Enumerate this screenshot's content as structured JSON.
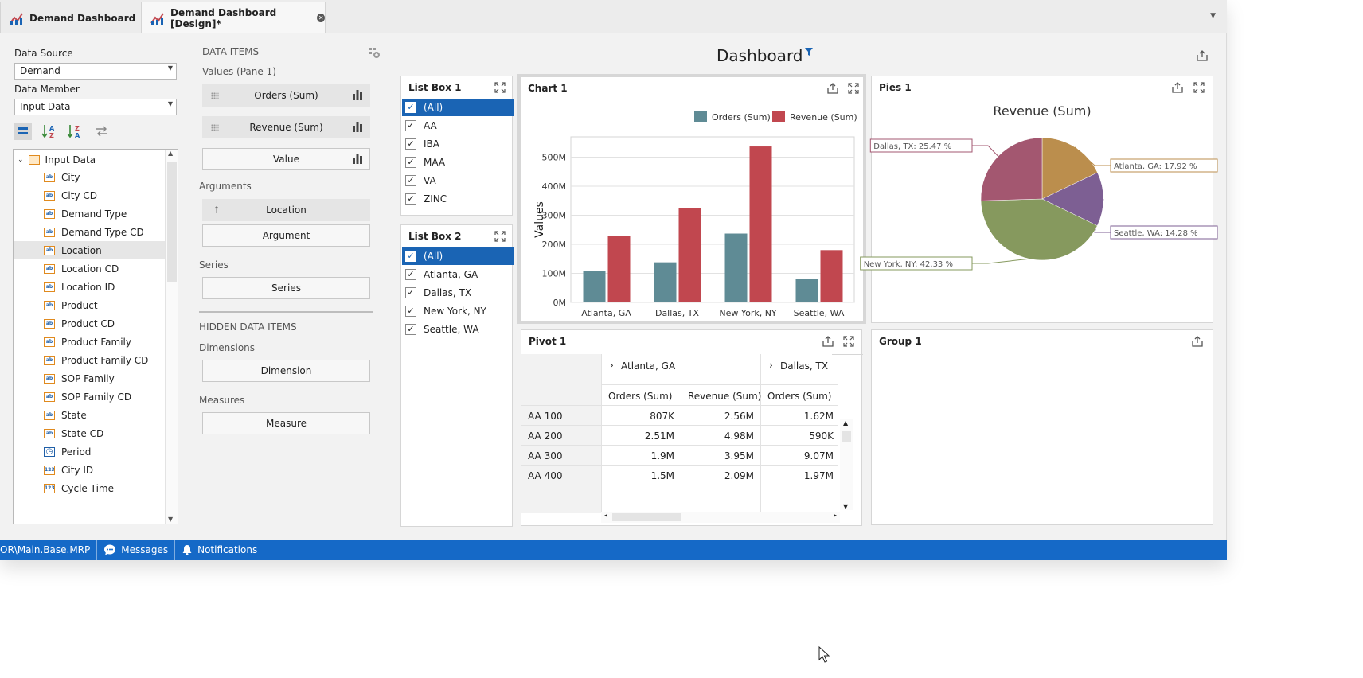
{
  "tabs": [
    {
      "label": "Demand Dashboard"
    },
    {
      "label": "Demand Dashboard [Design]*"
    }
  ],
  "left": {
    "data_source_label": "Data Source",
    "data_source_value": "Demand",
    "data_member_label": "Data Member",
    "data_member_value": "Input Data",
    "tree_root": "Input Data",
    "fields": [
      {
        "label": "City",
        "type": "ab"
      },
      {
        "label": "City CD",
        "type": "ab"
      },
      {
        "label": "Demand Type",
        "type": "ab"
      },
      {
        "label": "Demand Type CD",
        "type": "ab"
      },
      {
        "label": "Location",
        "type": "ab"
      },
      {
        "label": "Location CD",
        "type": "ab"
      },
      {
        "label": "Location ID",
        "type": "ab"
      },
      {
        "label": "Product",
        "type": "ab"
      },
      {
        "label": "Product CD",
        "type": "ab"
      },
      {
        "label": "Product Family",
        "type": "ab"
      },
      {
        "label": "Product Family CD",
        "type": "ab"
      },
      {
        "label": "SOP Family",
        "type": "ab"
      },
      {
        "label": "SOP Family CD",
        "type": "ab"
      },
      {
        "label": "State",
        "type": "ab"
      },
      {
        "label": "State CD",
        "type": "ab"
      },
      {
        "label": "Period",
        "type": "clock"
      },
      {
        "label": "City ID",
        "type": "123"
      },
      {
        "label": "Cycle Time",
        "type": "123"
      }
    ],
    "selected_field": "Location"
  },
  "data_items": {
    "header": "DATA ITEMS",
    "values_label": "Values (Pane 1)",
    "values": [
      "Orders (Sum)",
      "Revenue (Sum)",
      "Value"
    ],
    "arguments_label": "Arguments",
    "argument_item": "Location",
    "argument_placeholder": "Argument",
    "series_label": "Series",
    "series_placeholder": "Series",
    "hidden_header": "HIDDEN DATA ITEMS",
    "dimensions_label": "Dimensions",
    "dimension_placeholder": "Dimension",
    "measures_label": "Measures",
    "measure_placeholder": "Measure"
  },
  "dashboard": {
    "title": "Dashboard",
    "listbox1": {
      "title": "List Box 1",
      "items": [
        "(All)",
        "AA",
        "IBA",
        "MAA",
        "VA",
        "ZINC"
      ]
    },
    "listbox2": {
      "title": "List Box 2",
      "items": [
        "(All)",
        "Atlanta, GA",
        "Dallas, TX",
        "New York, NY",
        "Seattle, WA"
      ]
    },
    "chart1": {
      "title": "Chart 1"
    },
    "pies1": {
      "title": "Pies 1"
    },
    "pivot1": {
      "title": "Pivot 1",
      "col_groups": [
        "Atlanta, GA",
        "Dallas, TX"
      ],
      "col_headers": [
        "Orders (Sum)",
        "Revenue (Sum)",
        "Orders (Sum)"
      ],
      "rows": [
        {
          "label": "AA 100",
          "values": [
            "807K",
            "2.56M",
            "1.62M"
          ]
        },
        {
          "label": "AA 200",
          "values": [
            "2.51M",
            "4.98M",
            "590K"
          ]
        },
        {
          "label": "AA 300",
          "values": [
            "1.9M",
            "3.95M",
            "9.07M"
          ]
        },
        {
          "label": "AA 400",
          "values": [
            "1.5M",
            "2.09M",
            "1.97M"
          ]
        }
      ]
    },
    "group1": {
      "title": "Group 1"
    }
  },
  "chart_data": [
    {
      "type": "bar",
      "title": "",
      "categories": [
        "Atlanta, GA",
        "Dallas, TX",
        "New York, NY",
        "Seattle, WA"
      ],
      "series": [
        {
          "name": "Orders (Sum)",
          "values": [
            107,
            138,
            237,
            80
          ],
          "color": "#5f8b95"
        },
        {
          "name": "Revenue (Sum)",
          "values": [
            230,
            325,
            537,
            180
          ],
          "color": "#c1474f"
        }
      ],
      "xlabel": "",
      "ylabel": "Values",
      "ylim": [
        0,
        570
      ],
      "yticks": [
        "0M",
        "100M",
        "200M",
        "300M",
        "400M",
        "500M"
      ],
      "legend": "top-right",
      "grid": true
    },
    {
      "type": "pie",
      "title": "Revenue (Sum)",
      "slices": [
        {
          "label": "Atlanta, GA: 17.92 %",
          "value": 17.92,
          "color": "#bb8e4d"
        },
        {
          "label": "Seattle, WA: 14.28 %",
          "value": 14.28,
          "color": "#7d5f93"
        },
        {
          "label": "New York, NY: 42.33 %",
          "value": 42.33,
          "color": "#86995e"
        },
        {
          "label": "Dallas, TX: 25.47 %",
          "value": 25.47,
          "color": "#a35770"
        }
      ]
    }
  ],
  "status": {
    "path": "OR\\Main.Base.MRP",
    "messages": "Messages",
    "notifications": "Notifications"
  },
  "colors": {
    "accent": "#1569c7",
    "selection": "#1a64b4"
  }
}
